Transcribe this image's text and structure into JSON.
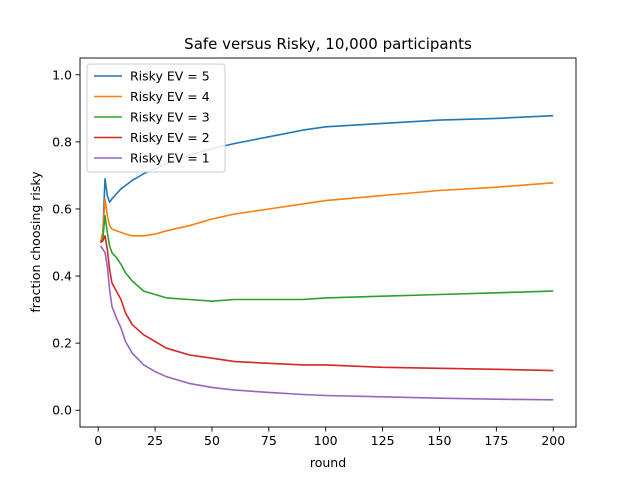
{
  "chart_data": {
    "type": "line",
    "title": "Safe versus Risky, 10,000 participants",
    "xlabel": "round",
    "ylabel": "fraction choosing risky",
    "xlim": [
      -8,
      210
    ],
    "ylim": [
      -0.05,
      1.05
    ],
    "xticks": [
      0,
      25,
      50,
      75,
      100,
      125,
      150,
      175,
      200
    ],
    "yticks": [
      0.0,
      0.2,
      0.4,
      0.6,
      0.8,
      1.0
    ],
    "ytick_labels": [
      "0.0",
      "0.2",
      "0.4",
      "0.6",
      "0.8",
      "1.0"
    ],
    "grid": false,
    "legend": "top-left",
    "x": [
      1,
      2,
      3,
      4,
      5,
      6,
      8,
      10,
      12,
      15,
      20,
      25,
      30,
      40,
      50,
      60,
      75,
      90,
      100,
      125,
      150,
      175,
      200
    ],
    "series": [
      {
        "name": "Risky EV = 5",
        "color": "#1f77b4",
        "values": [
          0.5,
          0.52,
          0.69,
          0.64,
          0.62,
          0.63,
          0.645,
          0.66,
          0.67,
          0.685,
          0.705,
          0.72,
          0.735,
          0.76,
          0.78,
          0.795,
          0.815,
          0.835,
          0.845,
          0.855,
          0.865,
          0.87,
          0.878
        ]
      },
      {
        "name": "Risky EV = 4",
        "color": "#ff7f0e",
        "values": [
          0.5,
          0.53,
          0.63,
          0.58,
          0.55,
          0.54,
          0.535,
          0.53,
          0.525,
          0.52,
          0.52,
          0.525,
          0.535,
          0.55,
          0.57,
          0.585,
          0.6,
          0.615,
          0.625,
          0.64,
          0.655,
          0.665,
          0.678
        ]
      },
      {
        "name": "Risky EV = 3",
        "color": "#2ca02c",
        "values": [
          0.5,
          0.51,
          0.58,
          0.53,
          0.49,
          0.47,
          0.455,
          0.435,
          0.41,
          0.385,
          0.355,
          0.345,
          0.335,
          0.33,
          0.325,
          0.33,
          0.33,
          0.33,
          0.335,
          0.34,
          0.345,
          0.35,
          0.355
        ]
      },
      {
        "name": "Risky EV = 2",
        "color": "#d62728",
        "values": [
          0.5,
          0.505,
          0.52,
          0.48,
          0.42,
          0.38,
          0.355,
          0.33,
          0.29,
          0.255,
          0.225,
          0.205,
          0.185,
          0.165,
          0.155,
          0.145,
          0.14,
          0.135,
          0.135,
          0.128,
          0.125,
          0.122,
          0.118
        ]
      },
      {
        "name": "Risky EV = 1",
        "color": "#9467bd",
        "values": [
          0.49,
          0.48,
          0.47,
          0.43,
          0.36,
          0.31,
          0.275,
          0.245,
          0.205,
          0.17,
          0.135,
          0.115,
          0.1,
          0.08,
          0.068,
          0.06,
          0.053,
          0.047,
          0.044,
          0.04,
          0.036,
          0.033,
          0.031
        ]
      }
    ]
  }
}
